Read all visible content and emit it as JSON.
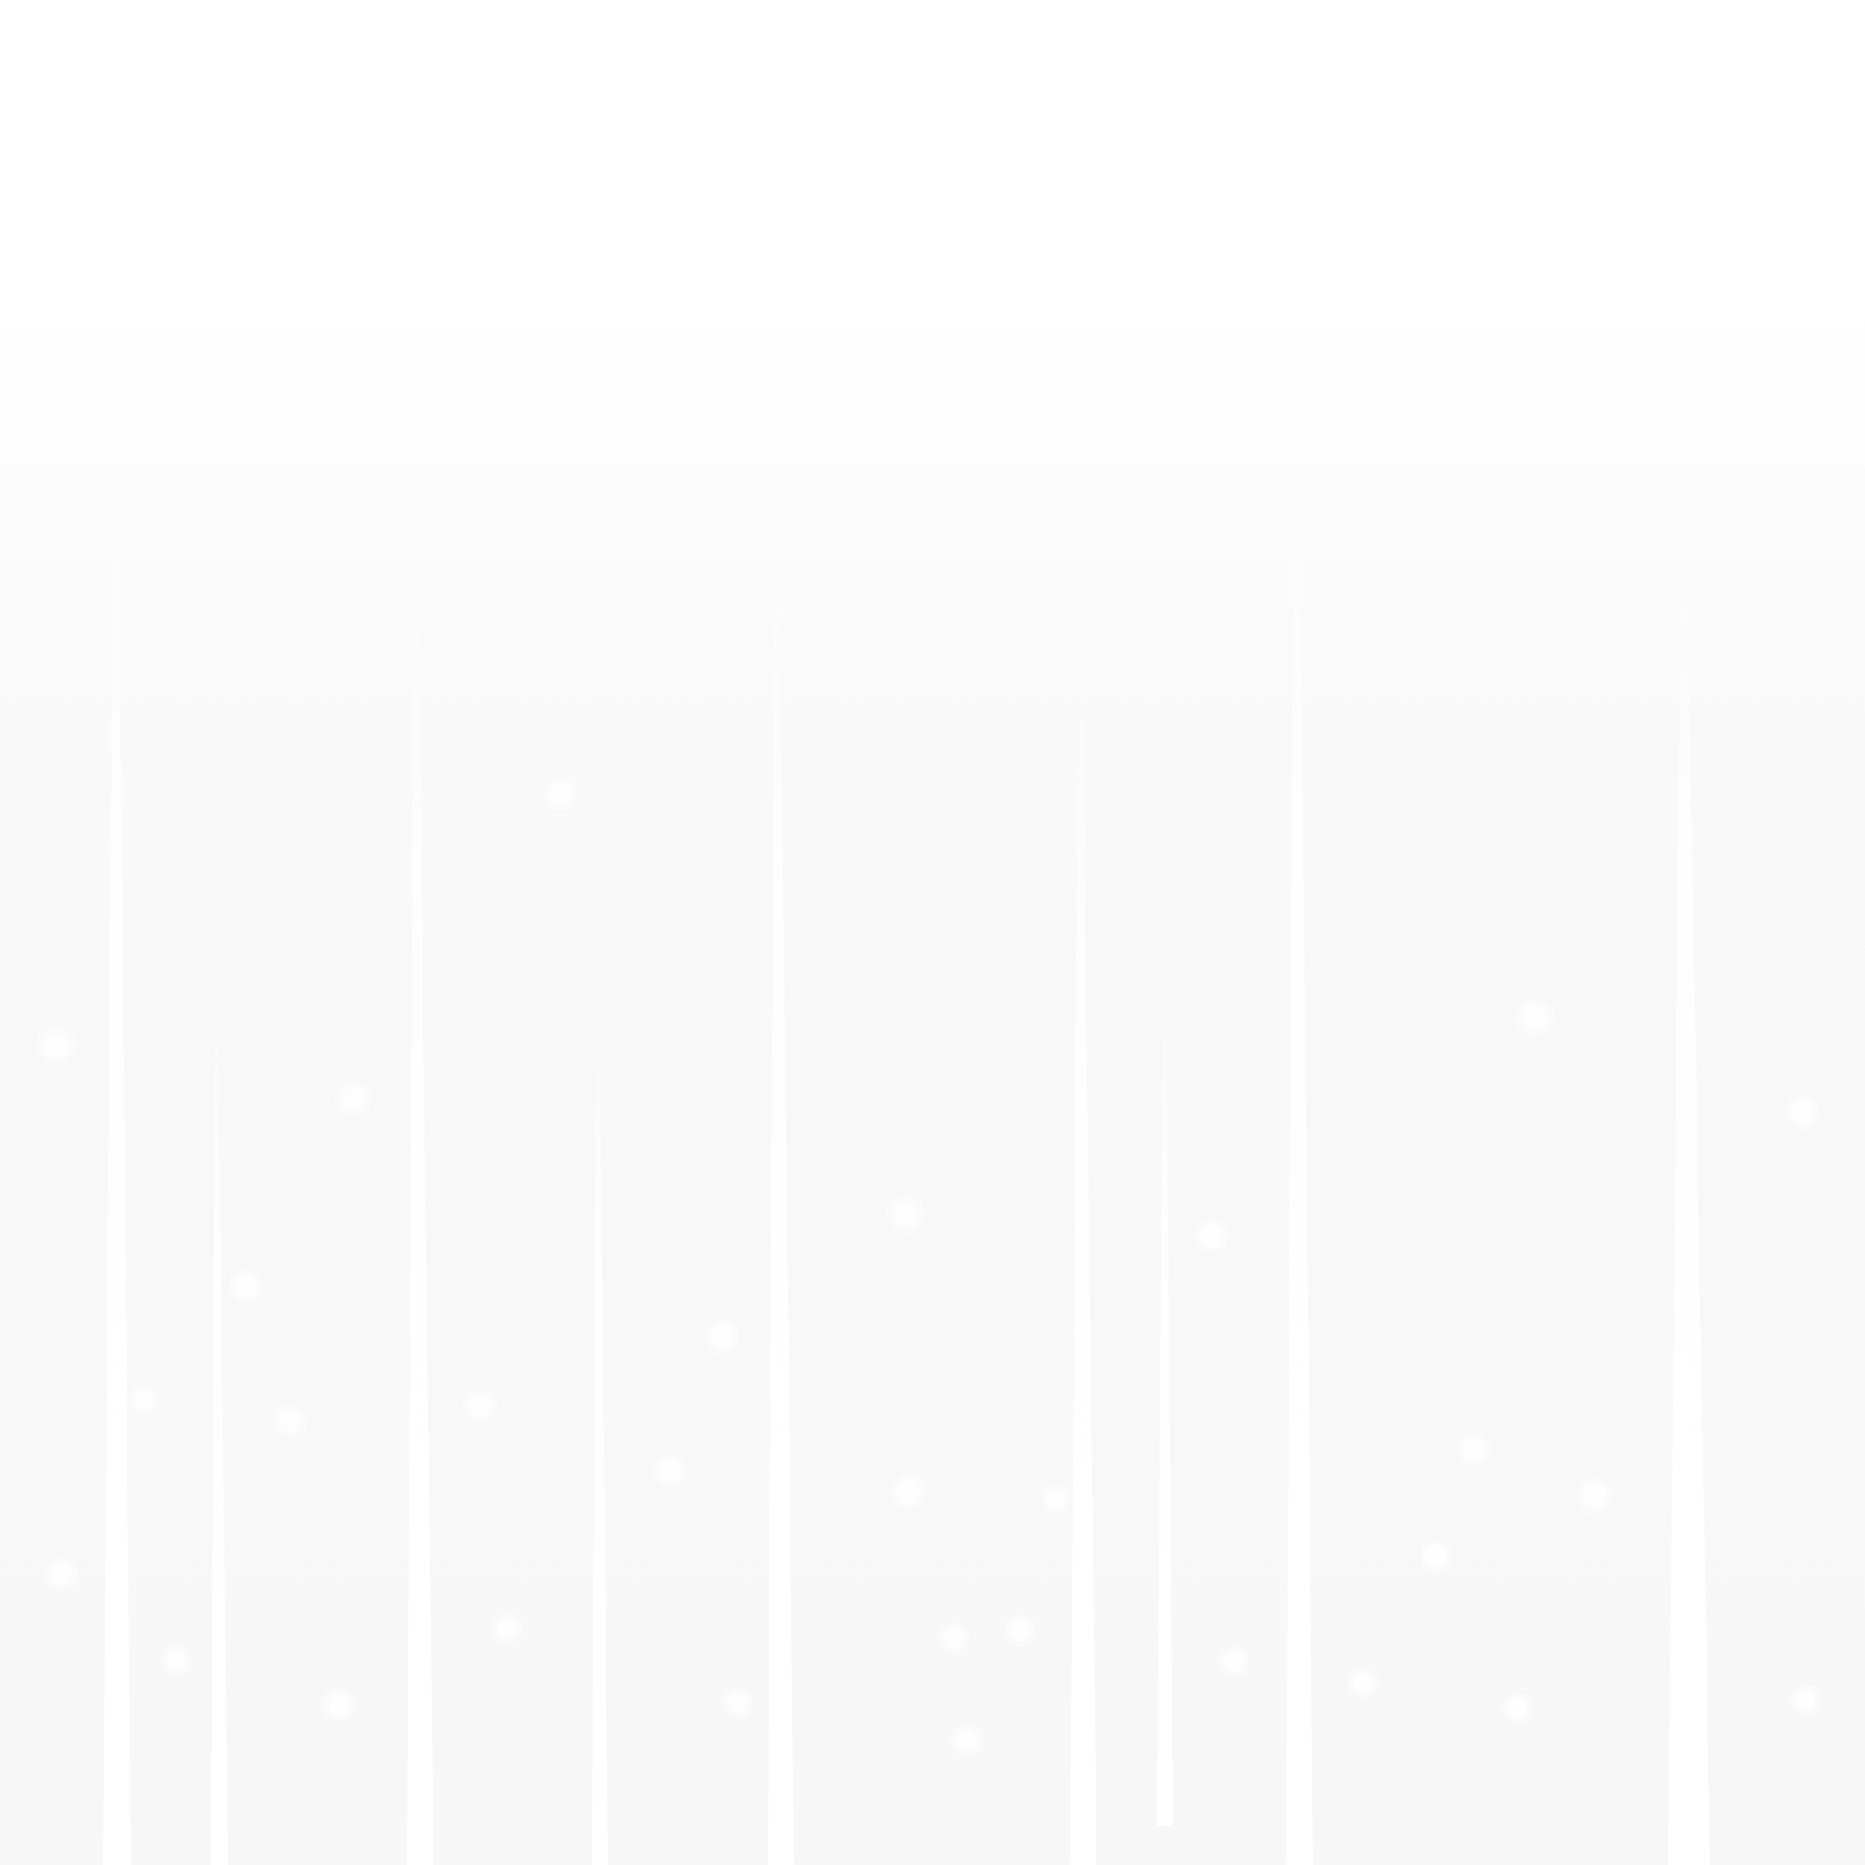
{
  "background": {
    "top_color": "#ffffff",
    "bottom_color": "#f7f7f7",
    "light_color": "#ffffff"
  }
}
